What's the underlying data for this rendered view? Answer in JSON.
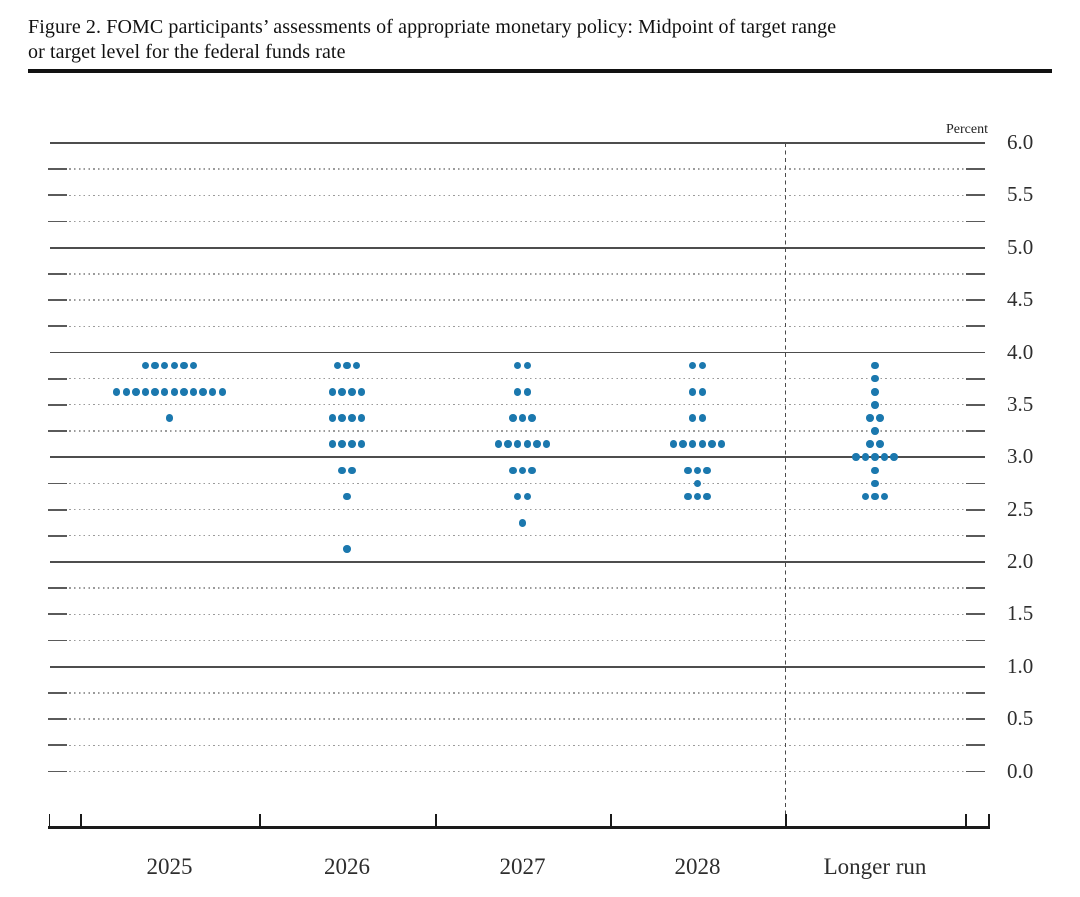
{
  "title": {
    "line1": "Figure 2. FOMC participants’ assessments of appropriate monetary policy: Midpoint of target range",
    "line2": "or target level for the federal funds rate"
  },
  "y_axis": {
    "unit_label": "Percent",
    "labels": [
      "6.0",
      "5.5",
      "5.0",
      "4.5",
      "4.0",
      "3.5",
      "3.0",
      "2.5",
      "2.0",
      "1.5",
      "1.0",
      "0.5",
      "0.0"
    ],
    "min": 0,
    "max": 6,
    "tick_step": 0.25,
    "label_step": 0.5
  },
  "x_axis": {
    "categories": [
      "2025",
      "2026",
      "2027",
      "2028",
      "Longer run"
    ]
  },
  "chart_data": {
    "type": "scatter",
    "title": "FOMC participants’ assessments of appropriate monetary policy: Midpoint of target range or target level for the federal funds rate",
    "xlabel": "",
    "ylabel": "Percent",
    "ylim": [
      0,
      6
    ],
    "grid": "dotted lines every 0.25 percent, solid lines at integers",
    "legend": "none",
    "categories": [
      "2025",
      "2026",
      "2027",
      "2028",
      "Longer run"
    ],
    "dashed_separator_before": "Longer run",
    "series": [
      {
        "name": "2025",
        "dots": [
          {
            "rate": 3.875,
            "count": 6
          },
          {
            "rate": 3.625,
            "count": 12
          },
          {
            "rate": 3.375,
            "count": 1
          }
        ]
      },
      {
        "name": "2026",
        "dots": [
          {
            "rate": 3.875,
            "count": 3
          },
          {
            "rate": 3.625,
            "count": 4
          },
          {
            "rate": 3.375,
            "count": 4
          },
          {
            "rate": 3.125,
            "count": 4
          },
          {
            "rate": 2.875,
            "count": 2
          },
          {
            "rate": 2.625,
            "count": 1
          },
          {
            "rate": 2.125,
            "count": 1
          }
        ]
      },
      {
        "name": "2027",
        "dots": [
          {
            "rate": 3.875,
            "count": 2
          },
          {
            "rate": 3.625,
            "count": 2
          },
          {
            "rate": 3.375,
            "count": 3
          },
          {
            "rate": 3.125,
            "count": 6
          },
          {
            "rate": 2.875,
            "count": 3
          },
          {
            "rate": 2.625,
            "count": 2
          },
          {
            "rate": 2.375,
            "count": 1
          }
        ]
      },
      {
        "name": "2028",
        "dots": [
          {
            "rate": 3.875,
            "count": 2
          },
          {
            "rate": 3.625,
            "count": 2
          },
          {
            "rate": 3.375,
            "count": 2
          },
          {
            "rate": 3.125,
            "count": 6
          },
          {
            "rate": 2.875,
            "count": 3
          },
          {
            "rate": 2.75,
            "count": 1
          },
          {
            "rate": 2.625,
            "count": 3
          }
        ]
      },
      {
        "name": "Longer run",
        "dots": [
          {
            "rate": 3.875,
            "count": 1
          },
          {
            "rate": 3.75,
            "count": 1
          },
          {
            "rate": 3.625,
            "count": 1
          },
          {
            "rate": 3.5,
            "count": 1
          },
          {
            "rate": 3.375,
            "count": 2
          },
          {
            "rate": 3.25,
            "count": 1
          },
          {
            "rate": 3.125,
            "count": 2
          },
          {
            "rate": 3.0,
            "count": 5
          },
          {
            "rate": 2.875,
            "count": 1
          },
          {
            "rate": 2.75,
            "count": 1
          },
          {
            "rate": 2.625,
            "count": 3
          }
        ]
      }
    ]
  },
  "colors": {
    "dot": "#1b78ae",
    "solid_grid": "#4d4d4d",
    "dotted_grid": "#9a9a9a",
    "axis": "#1a1a1a",
    "text": "#2e2e2e"
  }
}
